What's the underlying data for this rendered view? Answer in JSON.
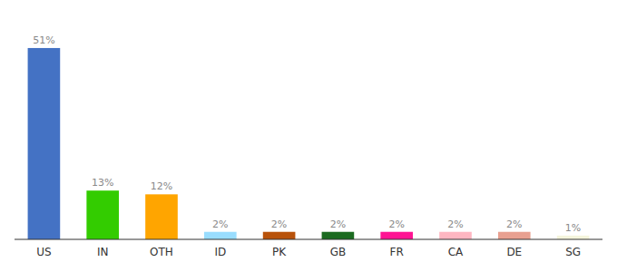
{
  "chart_data": {
    "type": "bar",
    "categories": [
      "US",
      "IN",
      "OTH",
      "ID",
      "PK",
      "GB",
      "FR",
      "CA",
      "DE",
      "SG"
    ],
    "values": [
      51,
      13,
      12,
      2,
      2,
      2,
      2,
      2,
      2,
      1
    ],
    "value_labels": [
      "51%",
      "13%",
      "12%",
      "2%",
      "2%",
      "2%",
      "2%",
      "2%",
      "2%",
      "1%"
    ],
    "colors": [
      "#4472C4",
      "#33CC00",
      "#FFA500",
      "#99DDFF",
      "#B8520A",
      "#1B6B20",
      "#FF1493",
      "#FFB6C1",
      "#E8A090",
      "#F5F5DC"
    ],
    "ylim": [
      0,
      58
    ],
    "data_labels": true,
    "tick_labels": "x"
  }
}
